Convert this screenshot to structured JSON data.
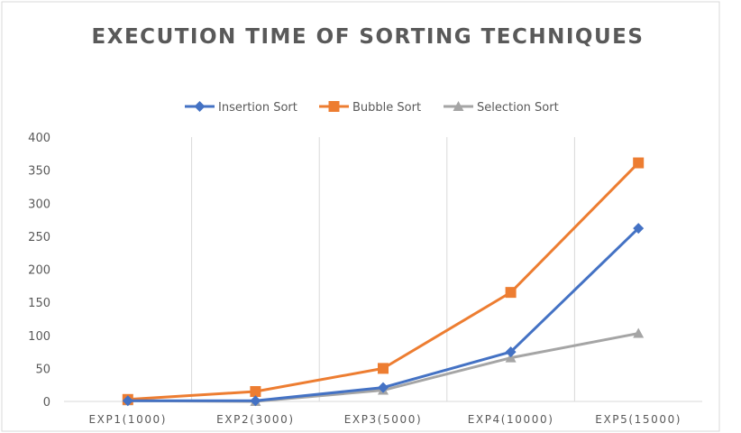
{
  "chart_data": {
    "type": "line",
    "title": "EXECUTION TIME OF SORTING TECHNIQUES",
    "categories": [
      "EXP1(1000)",
      "EXP2(3000)",
      "EXP3(5000)",
      "EXP4(10000)",
      "EXP5(15000)"
    ],
    "ylim": [
      0,
      400
    ],
    "yticks": [
      "0",
      "50",
      "100",
      "150",
      "200",
      "250",
      "300",
      "350",
      "400"
    ],
    "grid": "vertical",
    "legend_position": "top",
    "series": [
      {
        "name": "Insertion Sort",
        "color": "#4472C4",
        "marker": "diamond",
        "values": [
          1,
          1,
          21,
          75,
          262
        ]
      },
      {
        "name": "Bubble Sort",
        "color": "#ED7D31",
        "marker": "square",
        "values": [
          3,
          15,
          50,
          165,
          361
        ]
      },
      {
        "name": "Selection Sort",
        "color": "#A5A5A5",
        "marker": "triangle",
        "values": [
          1,
          0,
          17,
          66,
          103
        ]
      }
    ]
  }
}
